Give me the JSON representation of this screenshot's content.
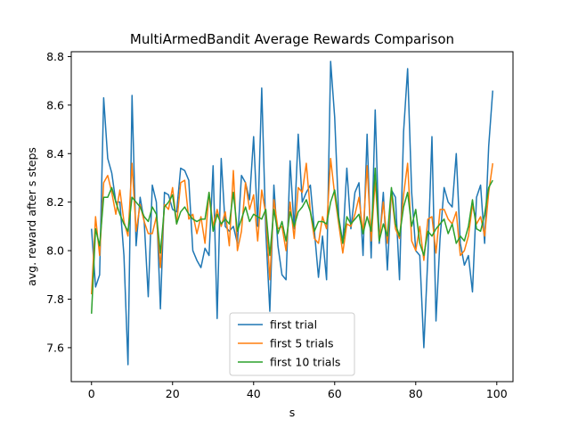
{
  "chart_data": {
    "type": "line",
    "title": "MultiArmedBandit Average Rewards Comparison",
    "xlabel": "s",
    "ylabel": "avg. reward after s steps",
    "xlim": [
      -5,
      104
    ],
    "ylim": [
      7.46,
      8.82
    ],
    "xticks": [
      0,
      20,
      40,
      60,
      80,
      100
    ],
    "yticks": [
      7.6,
      7.8,
      8.0,
      8.2,
      8.4,
      8.6,
      8.8
    ],
    "legend_position": "lower-center",
    "grid": false,
    "series": [
      {
        "name": "first trial",
        "color": "#1f77b4",
        "values": [
          8.09,
          7.85,
          7.9,
          8.63,
          8.38,
          8.32,
          8.2,
          8.2,
          7.98,
          7.53,
          8.64,
          8.02,
          8.22,
          8.12,
          7.81,
          8.27,
          8.2,
          7.76,
          8.24,
          8.23,
          8.17,
          8.16,
          8.34,
          8.33,
          8.29,
          8.0,
          7.96,
          7.93,
          8.01,
          7.98,
          8.35,
          7.72,
          8.38,
          8.1,
          8.08,
          8.1,
          8.03,
          8.31,
          8.28,
          8.21,
          8.47,
          8.1,
          8.67,
          8.08,
          7.75,
          8.27,
          8.02,
          7.9,
          7.88,
          8.37,
          8.09,
          8.48,
          8.2,
          8.24,
          8.27,
          8.08,
          7.89,
          8.06,
          7.88,
          8.78,
          8.55,
          8.14,
          8.03,
          8.34,
          8.09,
          8.24,
          8.28,
          7.98,
          8.48,
          7.97,
          8.58,
          8.03,
          8.24,
          7.92,
          8.25,
          8.22,
          7.88,
          8.49,
          8.75,
          8.24,
          8.0,
          7.98,
          7.6,
          7.98,
          8.47,
          7.71,
          8.05,
          8.26,
          8.2,
          8.18,
          8.4,
          8.03,
          7.94,
          7.98,
          7.83,
          8.22,
          8.27,
          8.03,
          8.43,
          8.66
        ]
      },
      {
        "name": "first 5 trials",
        "color": "#ff7f0e",
        "values": [
          7.82,
          8.14,
          7.98,
          8.28,
          8.31,
          8.24,
          8.15,
          8.25,
          8.12,
          8.06,
          8.36,
          8.08,
          8.19,
          8.12,
          8.07,
          8.07,
          8.14,
          7.93,
          8.19,
          8.17,
          8.26,
          8.11,
          8.28,
          8.29,
          8.13,
          8.15,
          8.07,
          8.14,
          8.03,
          8.24,
          8.1,
          8.17,
          8.1,
          8.16,
          8.02,
          8.33,
          8.0,
          8.08,
          8.28,
          8.17,
          8.23,
          8.04,
          8.25,
          8.15,
          7.88,
          8.21,
          8.09,
          8.1,
          8.0,
          8.2,
          8.05,
          8.26,
          8.24,
          8.36,
          8.16,
          8.05,
          8.03,
          8.14,
          8.09,
          8.38,
          8.23,
          8.11,
          7.99,
          8.11,
          8.1,
          8.15,
          8.22,
          8.07,
          8.35,
          8.04,
          8.29,
          8.04,
          8.2,
          8.03,
          8.24,
          8.09,
          8.05,
          8.23,
          8.36,
          8.04,
          8.0,
          8.1,
          7.96,
          8.13,
          8.14,
          7.99,
          8.17,
          8.17,
          8.13,
          8.11,
          8.16,
          7.98,
          8.0,
          8.06,
          8.19,
          8.11,
          8.14,
          8.06,
          8.24,
          8.36
        ]
      },
      {
        "name": "first 10 trials",
        "color": "#2ca02c",
        "values": [
          7.74,
          8.09,
          8.02,
          8.22,
          8.22,
          8.26,
          8.2,
          8.15,
          8.11,
          8.08,
          8.22,
          8.2,
          8.18,
          8.14,
          8.12,
          8.18,
          8.15,
          7.99,
          8.18,
          8.2,
          8.23,
          8.11,
          8.16,
          8.18,
          8.15,
          8.13,
          8.12,
          8.13,
          8.13,
          8.24,
          8.08,
          8.15,
          8.11,
          8.13,
          8.11,
          8.24,
          8.08,
          8.13,
          8.18,
          8.12,
          8.15,
          8.14,
          8.13,
          8.17,
          7.98,
          8.17,
          8.07,
          8.12,
          8.04,
          8.16,
          8.1,
          8.16,
          8.18,
          8.21,
          8.16,
          8.08,
          8.12,
          8.12,
          8.11,
          8.2,
          8.25,
          8.13,
          8.03,
          8.14,
          8.11,
          8.13,
          8.15,
          8.07,
          8.14,
          8.08,
          8.34,
          8.04,
          8.11,
          8.06,
          8.26,
          8.11,
          8.06,
          8.18,
          8.24,
          8.1,
          8.17,
          8.03,
          7.98,
          8.08,
          8.06,
          8.09,
          8.11,
          8.13,
          8.07,
          8.11,
          8.03,
          8.06,
          8.04,
          8.1,
          8.21,
          8.09,
          8.08,
          8.15,
          8.26,
          8.29
        ]
      }
    ]
  }
}
